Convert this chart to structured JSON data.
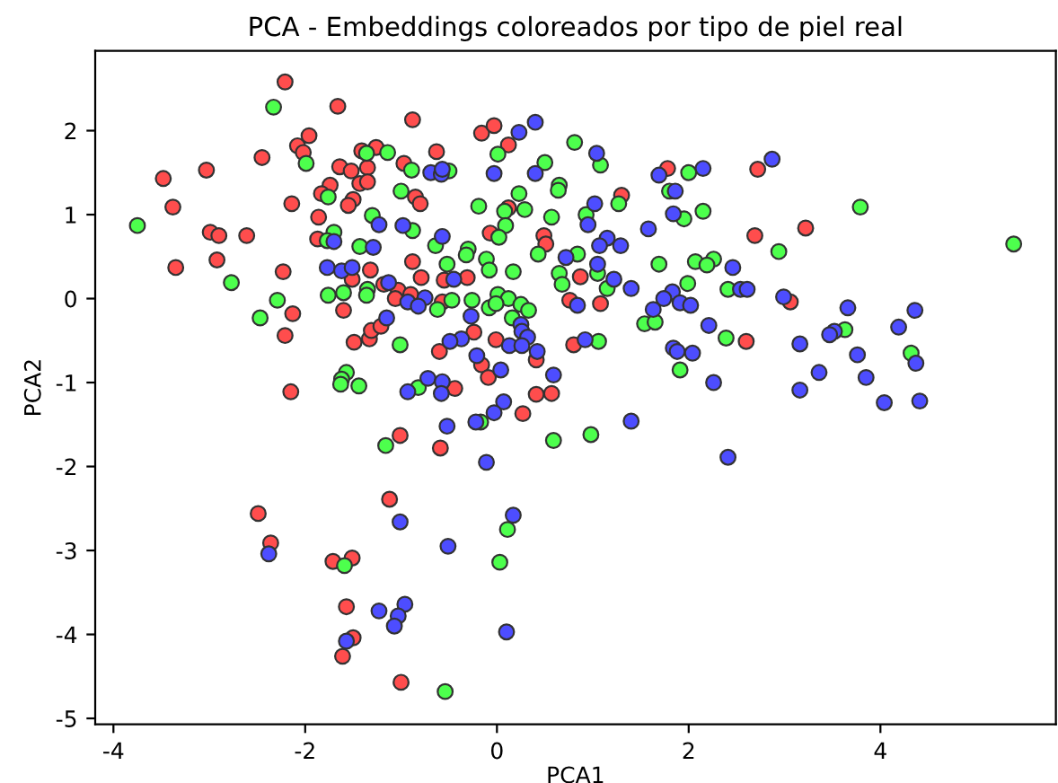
{
  "chart_data": {
    "type": "scatter",
    "title": "PCA - Embeddings coloreados por tipo de piel real",
    "xlabel": "PCA1",
    "ylabel": "PCA2",
    "xlim": [
      -4.19,
      5.83
    ],
    "ylim": [
      -5.07,
      2.95
    ],
    "xticks": [
      -4,
      -2,
      0,
      2,
      4
    ],
    "yticks": [
      -5,
      -4,
      -3,
      -2,
      -1,
      0,
      1,
      2
    ],
    "grid": false,
    "marker": "circle",
    "series": [
      {
        "color": "#ff4d4d",
        "x": [
          -2.21,
          -1.66,
          -0.88,
          -1.96,
          -2.08,
          -2.02,
          -2.45,
          -3.48,
          -3.03,
          -3.38,
          -2.14,
          -1.64,
          -1.52,
          -1.41,
          -1.26,
          -1.35,
          -1.43,
          -1.35,
          -1.74,
          -1.83,
          -1.5,
          -1.55,
          -0.97,
          -1.86,
          -2.99,
          -2.9,
          -2.61,
          -1.87,
          -0.88,
          -2.92,
          -3.35,
          -2.23,
          -1.32,
          -1.51,
          -1.18,
          -1.03,
          -1.06,
          -1.6,
          -2.13,
          -2.21,
          -1.49,
          -1.33,
          -1.31,
          -1.21,
          -2.15,
          -0.85,
          -0.16,
          -0.03,
          0.12,
          -0.63,
          -0.8,
          0.12,
          -0.07,
          0.49,
          0.51,
          1.3,
          1.78,
          -0.79,
          -0.55,
          -0.31,
          0.87,
          -0.9,
          -0.57,
          0.76,
          1.08,
          -0.24,
          -0.01,
          -0.6,
          -0.16,
          -0.09,
          0.41,
          0.8,
          -0.44,
          0.57,
          0.41,
          2.72,
          2.69,
          3.22,
          3.06,
          2.6,
          -1.01,
          -1.12,
          -2.49,
          -2.36,
          -1.71,
          -1.51,
          -1.57,
          -1.5,
          -1.61,
          -1.0,
          0.27,
          -0.59
        ],
        "values": [
          2.58,
          2.29,
          2.13,
          1.94,
          1.82,
          1.74,
          1.68,
          1.43,
          1.53,
          1.09,
          1.13,
          1.57,
          1.52,
          1.76,
          1.8,
          1.56,
          1.37,
          1.39,
          1.35,
          1.25,
          1.18,
          1.11,
          1.61,
          0.97,
          0.79,
          0.75,
          0.75,
          0.71,
          0.44,
          0.46,
          0.37,
          0.32,
          0.34,
          0.23,
          0.17,
          0.1,
          0.0,
          -0.14,
          -0.18,
          -0.44,
          -0.52,
          -0.48,
          -0.38,
          -0.33,
          -1.11,
          1.21,
          1.97,
          2.06,
          1.83,
          1.75,
          1.13,
          1.08,
          0.78,
          0.75,
          0.65,
          1.23,
          1.55,
          0.25,
          0.22,
          0.25,
          0.26,
          0.05,
          -0.04,
          -0.02,
          -0.06,
          -0.4,
          -0.49,
          -0.63,
          -0.79,
          -0.94,
          -0.73,
          -0.55,
          -1.07,
          -1.13,
          -1.14,
          1.54,
          0.75,
          0.84,
          -0.04,
          -0.51,
          -1.63,
          -2.39,
          -2.56,
          -2.91,
          -3.13,
          -3.09,
          -3.67,
          -4.04,
          -4.26,
          -4.57,
          -1.37,
          -1.78
        ]
      },
      {
        "color": "#4dff4d",
        "x": [
          -2.33,
          -3.75,
          -1.99,
          -1.36,
          -1.14,
          -0.89,
          -1.76,
          -1.0,
          -1.3,
          -1.7,
          -0.88,
          -1.43,
          -1.77,
          -2.77,
          -2.29,
          -2.47,
          -1.76,
          -1.6,
          -1.35,
          -1.36,
          -1.01,
          -1.57,
          -1.62,
          -1.63,
          -1.44,
          0.81,
          0.01,
          0.5,
          1.08,
          -0.5,
          0.23,
          0.65,
          0.64,
          -0.19,
          0.08,
          0.29,
          0.57,
          0.09,
          0.02,
          0.93,
          1.27,
          1.8,
          2.0,
          1.95,
          2.15,
          -0.64,
          -0.3,
          -0.32,
          -0.11,
          -0.52,
          -0.08,
          0.17,
          0.43,
          0.84,
          0.65,
          0.68,
          1.05,
          1.15,
          1.69,
          2.07,
          2.26,
          2.19,
          1.99,
          2.41,
          -0.26,
          0.01,
          0.12,
          0.25,
          0.33,
          -0.08,
          -0.01,
          -0.62,
          -0.47,
          0.16,
          1.54,
          1.65,
          2.39,
          1.06,
          1.91,
          3.79,
          5.39,
          2.94,
          3.63,
          4.32,
          -1.16,
          -1.59,
          -0.82,
          -0.17,
          0.59,
          0.98,
          0.11,
          0.03,
          -0.54
        ],
        "values": [
          2.28,
          0.87,
          1.61,
          1.73,
          1.74,
          1.53,
          1.21,
          1.28,
          0.99,
          0.79,
          0.81,
          0.62,
          0.69,
          0.19,
          -0.02,
          -0.23,
          0.04,
          0.07,
          0.11,
          0.04,
          -0.55,
          -0.88,
          -0.96,
          -1.02,
          -1.04,
          1.86,
          1.72,
          1.62,
          1.59,
          1.52,
          1.25,
          1.35,
          1.29,
          1.1,
          1.04,
          1.06,
          0.97,
          0.87,
          0.73,
          1.0,
          1.13,
          1.28,
          1.5,
          0.95,
          1.04,
          0.63,
          0.59,
          0.52,
          0.47,
          0.41,
          0.34,
          0.32,
          0.53,
          0.53,
          0.3,
          0.17,
          0.3,
          0.12,
          0.41,
          0.44,
          0.47,
          0.4,
          0.18,
          0.11,
          -0.02,
          0.05,
          0.0,
          -0.07,
          -0.14,
          -0.11,
          -0.06,
          -0.13,
          -0.02,
          -0.23,
          -0.3,
          -0.28,
          -0.47,
          -0.51,
          -0.85,
          1.09,
          0.65,
          0.56,
          -0.37,
          -0.65,
          -1.75,
          -3.18,
          -1.06,
          -1.47,
          -1.69,
          -1.62,
          -2.75,
          -3.14,
          -4.68
        ]
      },
      {
        "color": "#4d4dff",
        "x": [
          -1.23,
          -0.98,
          -1.7,
          -1.77,
          -1.62,
          -1.51,
          -1.29,
          -1.13,
          -0.93,
          -1.15,
          -0.93,
          0.23,
          0.4,
          1.04,
          -0.69,
          -0.58,
          -0.57,
          -0.03,
          0.4,
          1.69,
          2.15,
          1.86,
          1.84,
          1.58,
          1.02,
          0.95,
          1.15,
          1.07,
          1.29,
          -0.57,
          0.72,
          1.05,
          1.22,
          1.4,
          -0.45,
          -0.75,
          -0.82,
          0.84,
          -0.27,
          0.25,
          0.26,
          0.32,
          -0.37,
          -0.49,
          0.13,
          0.26,
          0.92,
          0.42,
          -0.21,
          0.04,
          0.59,
          -0.72,
          -0.57,
          1.83,
          1.74,
          1.91,
          2.02,
          1.63,
          2.21,
          1.84,
          1.88,
          2.04,
          2.26,
          2.46,
          2.87,
          2.54,
          2.61,
          2.99,
          3.66,
          4.36,
          4.19,
          3.52,
          3.47,
          3.16,
          3.76,
          4.37,
          3.36,
          3.85,
          3.16,
          4.04,
          4.41,
          2.41,
          -1.01,
          -2.38,
          -0.96,
          -1.23,
          -1.03,
          -1.07,
          -1.57,
          -0.58,
          0.07,
          -0.03,
          -0.22,
          -0.52,
          -0.11,
          1.4,
          0.17,
          -0.51,
          0.1
        ],
        "values": [
          0.88,
          0.87,
          0.68,
          0.37,
          0.33,
          0.37,
          0.61,
          0.19,
          -0.04,
          -0.23,
          -1.11,
          1.98,
          2.1,
          1.73,
          1.5,
          1.48,
          1.54,
          1.49,
          1.49,
          1.47,
          1.55,
          1.28,
          1.01,
          0.83,
          1.13,
          0.88,
          0.72,
          0.63,
          0.63,
          0.74,
          0.49,
          0.41,
          0.23,
          0.12,
          0.23,
          0.01,
          -0.09,
          -0.08,
          -0.21,
          -0.31,
          -0.39,
          -0.46,
          -0.48,
          -0.51,
          -0.56,
          -0.56,
          -0.49,
          -0.63,
          -0.68,
          -0.85,
          -0.91,
          -0.95,
          -0.99,
          0.08,
          0.0,
          -0.05,
          -0.08,
          -0.13,
          -0.32,
          -0.59,
          -0.63,
          -0.65,
          -1.0,
          0.37,
          1.66,
          0.11,
          0.11,
          0.02,
          -0.11,
          -0.14,
          -0.34,
          -0.39,
          -0.43,
          -0.54,
          -0.67,
          -0.77,
          -0.88,
          -0.94,
          -1.09,
          -1.24,
          -1.22,
          -1.89,
          -2.66,
          -3.04,
          -3.64,
          -3.72,
          -3.78,
          -3.9,
          -4.08,
          -1.13,
          -1.23,
          -1.36,
          -1.47,
          -1.52,
          -1.95,
          -1.46,
          -2.58,
          -2.95,
          -3.97
        ]
      }
    ]
  }
}
